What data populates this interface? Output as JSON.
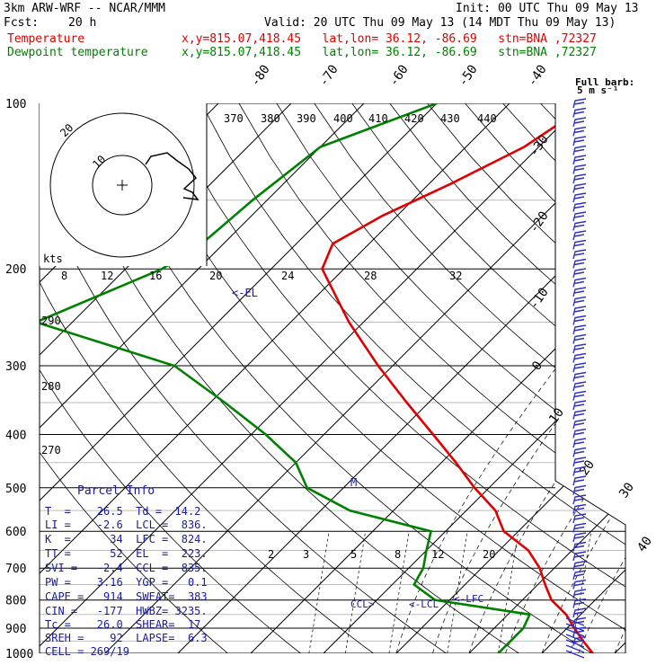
{
  "header": {
    "model": "3km ARW-WRF -- NCAR/MMM",
    "init": "Init: 00 UTC Thu 09 May 13",
    "fcst_label": "Fcst:",
    "fcst_value": "20 h",
    "valid": "Valid: 20 UTC Thu 09 May 13 (14 MDT Thu 09 May 13)",
    "temperature_label": "Temperature",
    "dewpoint_label": "Dewpoint temperature",
    "loc_line": "x,y=815.07,418.45   lat,lon= 36.12, -86.69   stn=BNA ,72327"
  },
  "colors": {
    "temperature": "#e00000",
    "dewpoint": "#008000",
    "grid": "#000000",
    "panel_text": "#1a1aa0",
    "barbs": "#3030c0"
  },
  "chart_data": {
    "type": "skew-t",
    "y_axis": "pressure (hPa), log scale",
    "pressure_labels": [
      "100",
      "200",
      "300",
      "400",
      "500",
      "600",
      "700",
      "800",
      "900",
      "1000"
    ],
    "isotherm_labels": [
      "-80",
      "-70",
      "-60",
      "-50",
      "-40",
      "-30",
      "-20",
      "-10",
      "0",
      "10",
      "20",
      "30",
      "40"
    ],
    "theta_labels": [
      "370",
      "380",
      "390",
      "400",
      "410",
      "420",
      "430",
      "440",
      "290",
      "280",
      "270"
    ],
    "mixing_ratio_labels": [
      "2",
      "3",
      "5",
      "8",
      "12",
      "20"
    ],
    "hodo_speed_labels": [
      "8",
      "12",
      "16",
      "20",
      "24",
      "28",
      "32"
    ],
    "hodo_unit": "kts",
    "hodo_ring_labels": [
      "20",
      "10"
    ],
    "barb_legend": "Full barb:\n5 m s⁻¹",
    "level_labels": {
      "el": "<-EL",
      "ccl": "CCL>",
      "lcl": "<-LCL",
      "lfc": "<-LFC",
      "m": "M"
    },
    "temperature_profile": [
      {
        "p": 100,
        "t": -49
      },
      {
        "p": 120,
        "t": -52
      },
      {
        "p": 140,
        "t": -57
      },
      {
        "p": 160,
        "t": -62
      },
      {
        "p": 180,
        "t": -65
      },
      {
        "p": 200,
        "t": -63
      },
      {
        "p": 250,
        "t": -52
      },
      {
        "p": 300,
        "t": -42
      },
      {
        "p": 350,
        "t": -33
      },
      {
        "p": 400,
        "t": -25
      },
      {
        "p": 450,
        "t": -18
      },
      {
        "p": 500,
        "t": -12
      },
      {
        "p": 550,
        "t": -6
      },
      {
        "p": 600,
        "t": -2
      },
      {
        "p": 650,
        "t": 4
      },
      {
        "p": 700,
        "t": 8
      },
      {
        "p": 750,
        "t": 11
      },
      {
        "p": 800,
        "t": 14
      },
      {
        "p": 850,
        "t": 18
      },
      {
        "p": 900,
        "t": 21
      },
      {
        "p": 950,
        "t": 24
      },
      {
        "p": 1000,
        "t": 27
      }
    ],
    "dewpoint_profile": [
      {
        "p": 100,
        "t": -70
      },
      {
        "p": 120,
        "t": -80
      },
      {
        "p": 150,
        "t": -82
      },
      {
        "p": 180,
        "t": -83
      },
      {
        "p": 200,
        "t": -85
      },
      {
        "p": 250,
        "t": -95
      },
      {
        "p": 300,
        "t": -70
      },
      {
        "p": 350,
        "t": -58
      },
      {
        "p": 400,
        "t": -48
      },
      {
        "p": 450,
        "t": -40
      },
      {
        "p": 500,
        "t": -35
      },
      {
        "p": 550,
        "t": -26
      },
      {
        "p": 600,
        "t": -12
      },
      {
        "p": 650,
        "t": -10
      },
      {
        "p": 700,
        "t": -8
      },
      {
        "p": 750,
        "t": -7
      },
      {
        "p": 800,
        "t": -2
      },
      {
        "p": 850,
        "t": 13
      },
      {
        "p": 900,
        "t": 14
      },
      {
        "p": 950,
        "t": 14
      },
      {
        "p": 1000,
        "t": 14
      }
    ]
  },
  "parcel_info": {
    "title": "Parcel Info",
    "rows": [
      "T  =    26.5  Td =  14.2",
      "LI =    -2.6  LCL =  836.",
      "K  =      34  LFC =  824.",
      "TT =      52  EL  =  223.",
      "SVI =   -2.4  CCL =  835.",
      "PW =    3.16  YGP =   0.1",
      "CAPE =   914  SWEAT=  383",
      "CIN =   -177  HWBZ= 3235.",
      "Tc =    26.0  SHEAR=  17.",
      "SREH =    92  LAPSE=  6.3",
      "CELL = 269/19"
    ]
  }
}
